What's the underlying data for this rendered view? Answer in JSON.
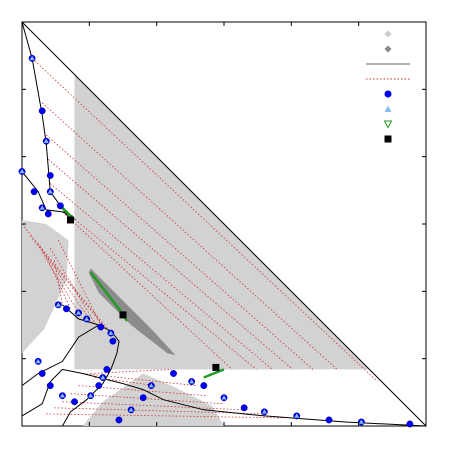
{
  "chart_data": {
    "type": "scatter",
    "title": "",
    "xlabel": "",
    "ylabel": "",
    "xlim": [
      0,
      1
    ],
    "ylim": [
      0,
      1
    ],
    "grid": false,
    "legend_placement": "top-right",
    "legend_entries": [
      {
        "marker": "diamond",
        "color": "#cccccc"
      },
      {
        "marker": "diamond",
        "color": "#888888"
      },
      {
        "marker": "line",
        "color": "#888888"
      },
      {
        "marker": "dotted-line",
        "color": "#cc3333"
      },
      {
        "marker": "circle",
        "color": "#0000ee"
      },
      {
        "marker": "triangle-up",
        "color": "#88bbee"
      },
      {
        "marker": "triangle-down",
        "color": "#229922"
      },
      {
        "marker": "square",
        "color": "#000000"
      }
    ],
    "colors": {
      "region_light": "#d2d2d2",
      "region_dark": "#8c8c8c",
      "boundary": "#000000",
      "tieline": "#cc3333",
      "points": "#0000ee",
      "alt_points": "#88bbee",
      "critical_line": "#229922",
      "critical_point": "#000000"
    },
    "regions_light": [
      [
        [
          0.13,
          0.85
        ],
        [
          0.13,
          0.14
        ],
        [
          0.86,
          0.14
        ],
        [
          0.13,
          0.87
        ]
      ],
      [
        [
          0.0,
          0.51
        ],
        [
          0.06,
          0.5
        ],
        [
          0.115,
          0.46
        ],
        [
          0.11,
          0.36
        ],
        [
          0.055,
          0.24
        ],
        [
          0.0,
          0.18
        ]
      ],
      [
        [
          0.15,
          0.0
        ],
        [
          0.2,
          0.06
        ],
        [
          0.3,
          0.13
        ],
        [
          0.37,
          0.1
        ],
        [
          0.47,
          0.05
        ],
        [
          0.5,
          0.0
        ]
      ]
    ],
    "region_dark": [
      [
        0.17,
        0.39
      ],
      [
        0.22,
        0.34
      ],
      [
        0.32,
        0.24
      ],
      [
        0.38,
        0.175
      ],
      [
        0.36,
        0.18
      ],
      [
        0.27,
        0.25
      ],
      [
        0.19,
        0.33
      ],
      [
        0.165,
        0.38
      ]
    ],
    "boundary_left": [
      [
        0.0,
        1.0
      ],
      [
        0.025,
        0.91
      ],
      [
        0.05,
        0.77
      ],
      [
        0.06,
        0.7
      ],
      [
        0.07,
        0.58
      ],
      [
        0.095,
        0.545
      ],
      [
        0.12,
        0.51
      ]
    ],
    "boundary_left_lower": [
      [
        0.0,
        0.63
      ],
      [
        0.04,
        0.58
      ],
      [
        0.06,
        0.535
      ],
      [
        0.1,
        0.53
      ],
      [
        0.125,
        0.52
      ]
    ],
    "boundary_mid": [
      [
        0.1,
        0.3
      ],
      [
        0.14,
        0.265
      ],
      [
        0.19,
        0.25
      ],
      [
        0.22,
        0.235
      ],
      [
        0.24,
        0.21
      ],
      [
        0.235,
        0.18
      ],
      [
        0.22,
        0.14
      ],
      [
        0.2,
        0.105
      ],
      [
        0.16,
        0.065
      ],
      [
        0.12,
        0.035
      ],
      [
        0.1,
        0.0
      ]
    ],
    "boundary_mid_lower": [
      [
        0.0,
        0.1
      ],
      [
        0.04,
        0.13
      ],
      [
        0.1,
        0.16
      ],
      [
        0.14,
        0.22
      ],
      [
        0.19,
        0.25
      ]
    ],
    "boundary_right": [
      [
        0.0,
        0.025
      ],
      [
        0.05,
        0.055
      ],
      [
        0.07,
        0.11
      ],
      [
        0.1,
        0.14
      ],
      [
        0.15,
        0.13
      ],
      [
        0.25,
        0.105
      ],
      [
        0.3,
        0.09
      ],
      [
        0.35,
        0.065
      ],
      [
        0.45,
        0.04
      ],
      [
        0.6,
        0.025
      ],
      [
        0.8,
        0.01
      ],
      [
        1.0,
        0.0
      ]
    ],
    "critical_points": [
      [
        0.12,
        0.51
      ],
      [
        0.25,
        0.275
      ],
      [
        0.48,
        0.145
      ]
    ],
    "points_left": [
      [
        0.025,
        0.91
      ],
      [
        0.05,
        0.78
      ],
      [
        0.06,
        0.705
      ],
      [
        0.07,
        0.62
      ],
      [
        0.07,
        0.58
      ],
      [
        0.095,
        0.545
      ],
      [
        0.0,
        0.63
      ],
      [
        0.03,
        0.58
      ],
      [
        0.05,
        0.54
      ],
      [
        0.065,
        0.525
      ]
    ],
    "points_mid": [
      [
        0.16,
        0.265
      ],
      [
        0.195,
        0.245
      ],
      [
        0.22,
        0.23
      ],
      [
        0.225,
        0.21
      ],
      [
        0.14,
        0.28
      ],
      [
        0.11,
        0.29
      ],
      [
        0.09,
        0.3
      ],
      [
        0.21,
        0.14
      ],
      [
        0.2,
        0.12
      ],
      [
        0.19,
        0.1
      ],
      [
        0.17,
        0.075
      ],
      [
        0.05,
        0.13
      ],
      [
        0.04,
        0.16
      ],
      [
        0.07,
        0.1
      ],
      [
        0.1,
        0.075
      ],
      [
        0.13,
        0.06
      ]
    ],
    "points_right": [
      [
        0.6,
        0.035
      ],
      [
        0.55,
        0.045
      ],
      [
        0.5,
        0.07
      ],
      [
        0.45,
        0.1
      ],
      [
        0.42,
        0.11
      ],
      [
        0.375,
        0.13
      ],
      [
        0.32,
        0.1
      ],
      [
        0.3,
        0.07
      ],
      [
        0.27,
        0.04
      ],
      [
        0.24,
        0.015
      ],
      [
        0.68,
        0.025
      ],
      [
        0.76,
        0.015
      ],
      [
        0.84,
        0.01
      ],
      [
        0.96,
        0.005
      ]
    ],
    "tielines_left": [
      [
        [
          0.025,
          0.91
        ],
        [
          0.88,
          0.11
        ]
      ],
      [
        [
          0.05,
          0.8
        ],
        [
          0.78,
          0.14
        ]
      ],
      [
        [
          0.06,
          0.72
        ],
        [
          0.72,
          0.14
        ]
      ],
      [
        [
          0.065,
          0.66
        ],
        [
          0.67,
          0.14
        ]
      ],
      [
        [
          0.07,
          0.6
        ],
        [
          0.62,
          0.14
        ]
      ],
      [
        [
          0.085,
          0.55
        ],
        [
          0.58,
          0.14
        ]
      ],
      [
        [
          0.1,
          0.53
        ],
        [
          0.52,
          0.14
        ]
      ]
    ],
    "tielines_mid": [
      [
        [
          0.0,
          0.5
        ],
        [
          0.22,
          0.23
        ]
      ],
      [
        [
          0.02,
          0.47
        ],
        [
          0.2,
          0.25
        ]
      ],
      [
        [
          0.04,
          0.45
        ],
        [
          0.17,
          0.26
        ]
      ],
      [
        [
          0.05,
          0.43
        ],
        [
          0.14,
          0.28
        ]
      ],
      [
        [
          0.06,
          0.42
        ],
        [
          0.12,
          0.29
        ]
      ],
      [
        [
          0.08,
          0.41
        ],
        [
          0.1,
          0.3
        ]
      ],
      [
        [
          0.07,
          0.44
        ],
        [
          0.18,
          0.255
        ]
      ],
      [
        [
          0.09,
          0.46
        ],
        [
          0.2,
          0.24
        ]
      ]
    ],
    "tielines_right": [
      [
        [
          0.15,
          0.13
        ],
        [
          0.43,
          0.1
        ]
      ],
      [
        [
          0.14,
          0.1
        ],
        [
          0.46,
          0.075
        ]
      ],
      [
        [
          0.12,
          0.08
        ],
        [
          0.5,
          0.055
        ]
      ],
      [
        [
          0.1,
          0.06
        ],
        [
          0.55,
          0.04
        ]
      ],
      [
        [
          0.08,
          0.045
        ],
        [
          0.6,
          0.03
        ]
      ],
      [
        [
          0.06,
          0.03
        ],
        [
          0.65,
          0.02
        ]
      ],
      [
        [
          0.17,
          0.13
        ],
        [
          0.37,
          0.14
        ]
      ],
      [
        [
          0.18,
          0.12
        ],
        [
          0.33,
          0.1
        ]
      ]
    ],
    "critical_curve_segments": [
      [
        [
          0.1,
          0.54
        ],
        [
          0.13,
          0.51
        ]
      ],
      [
        [
          0.17,
          0.38
        ],
        [
          0.24,
          0.29
        ],
        [
          0.26,
          0.26
        ]
      ],
      [
        [
          0.45,
          0.12
        ],
        [
          0.5,
          0.14
        ]
      ]
    ]
  }
}
